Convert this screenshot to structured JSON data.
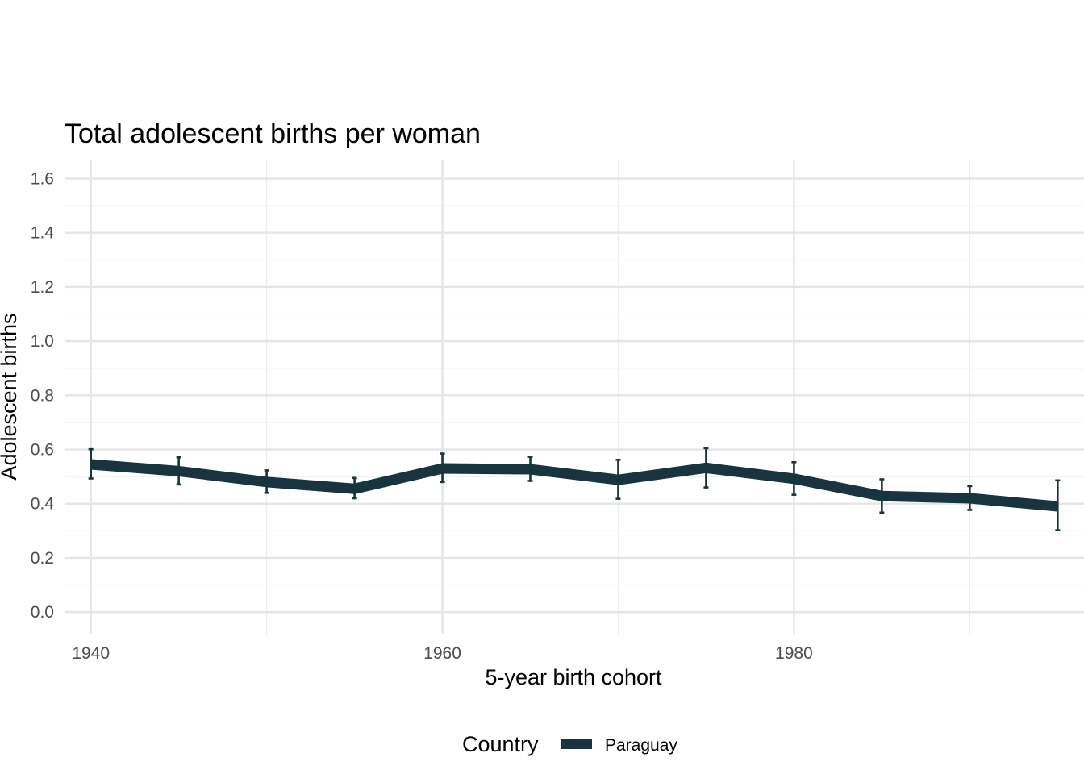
{
  "chart_data": {
    "type": "line",
    "title": "Total adolescent births per woman",
    "xlabel": "5-year birth cohort",
    "ylabel": "Adolescent births",
    "xlim": [
      1938.5,
      1996.5
    ],
    "ylim": [
      -0.08,
      1.67
    ],
    "x_ticks": [
      1940,
      1960,
      1980
    ],
    "x_tick_labels": [
      "1940",
      "1960",
      "1980"
    ],
    "x_minor_ticks": [
      1950,
      1970,
      1990
    ],
    "y_ticks": [
      0.0,
      0.2,
      0.4,
      0.6,
      0.8,
      1.0,
      1.2,
      1.4,
      1.6
    ],
    "y_tick_labels": [
      "0.0",
      "0.2",
      "0.4",
      "0.6",
      "0.8",
      "1.0",
      "1.2",
      "1.4",
      "1.6"
    ],
    "y_minor_ticks": [
      0.1,
      0.3,
      0.5,
      0.7,
      0.9,
      1.1,
      1.3,
      1.5
    ],
    "grid": true,
    "legend": {
      "title": "Country",
      "position": "bottom"
    },
    "series": [
      {
        "name": "Paraguay",
        "color": "#17343f",
        "x": [
          1940,
          1945,
          1950,
          1955,
          1960,
          1965,
          1970,
          1975,
          1980,
          1985,
          1990,
          1995
        ],
        "values": [
          0.545,
          0.52,
          0.48,
          0.455,
          0.53,
          0.527,
          0.488,
          0.532,
          0.492,
          0.428,
          0.42,
          0.39
        ],
        "error_low": [
          0.493,
          0.471,
          0.44,
          0.42,
          0.48,
          0.484,
          0.418,
          0.46,
          0.433,
          0.367,
          0.377,
          0.302
        ],
        "error_high": [
          0.601,
          0.571,
          0.523,
          0.495,
          0.585,
          0.573,
          0.562,
          0.605,
          0.553,
          0.49,
          0.465,
          0.486
        ]
      }
    ]
  }
}
